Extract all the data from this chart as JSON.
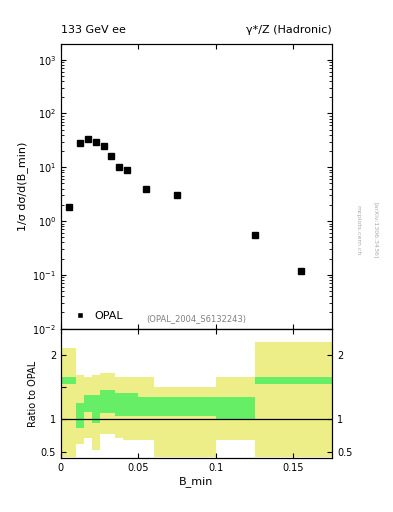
{
  "title_left": "133 GeV ee",
  "title_right": "γ*/Z (Hadronic)",
  "ylabel_main": "1/σ dσ/d(B_min)",
  "ylabel_ratio": "Ratio to OPAL",
  "xlabel": "B_min",
  "ref_label": "(OPAL_2004_S6132243)",
  "legend_label": "OPAL",
  "right_label": "[arXiv:1306.3436]",
  "mcplots_label": "mcplots.cern.ch",
  "data_x": [
    0.005,
    0.0125,
    0.0175,
    0.0225,
    0.0275,
    0.0325,
    0.0375,
    0.0425,
    0.055,
    0.075,
    0.125,
    0.155
  ],
  "data_y": [
    1.8,
    28.0,
    33.0,
    30.0,
    25.0,
    16.0,
    10.0,
    9.0,
    4.0,
    3.0,
    0.55,
    0.12
  ],
  "ratio_bins": [
    0.0,
    0.01,
    0.015,
    0.02,
    0.025,
    0.03,
    0.035,
    0.04,
    0.05,
    0.06,
    0.1,
    0.125,
    0.175
  ],
  "ratio_green_lo": [
    1.55,
    0.87,
    1.12,
    0.95,
    1.1,
    1.1,
    1.05,
    1.05,
    1.05,
    1.05,
    1.0,
    1.55,
    1.55
  ],
  "ratio_green_hi": [
    1.65,
    1.25,
    1.38,
    1.38,
    1.45,
    1.45,
    1.4,
    1.4,
    1.35,
    1.35,
    1.35,
    1.65,
    1.65
  ],
  "ratio_yellow_lo": [
    0.42,
    0.62,
    0.72,
    0.52,
    0.78,
    0.78,
    0.72,
    0.68,
    0.68,
    0.42,
    0.68,
    0.42,
    0.42
  ],
  "ratio_yellow_hi": [
    2.1,
    1.68,
    1.65,
    1.68,
    1.72,
    1.72,
    1.65,
    1.65,
    1.65,
    1.5,
    1.65,
    2.2,
    2.2
  ],
  "green_color": "#66ee66",
  "yellow_color": "#eeee88",
  "marker_color": "black",
  "marker_size": 5,
  "main_ylim": [
    0.01,
    2000
  ],
  "ratio_ylim": [
    0.4,
    2.4
  ],
  "xlim": [
    0.0,
    0.175
  ]
}
